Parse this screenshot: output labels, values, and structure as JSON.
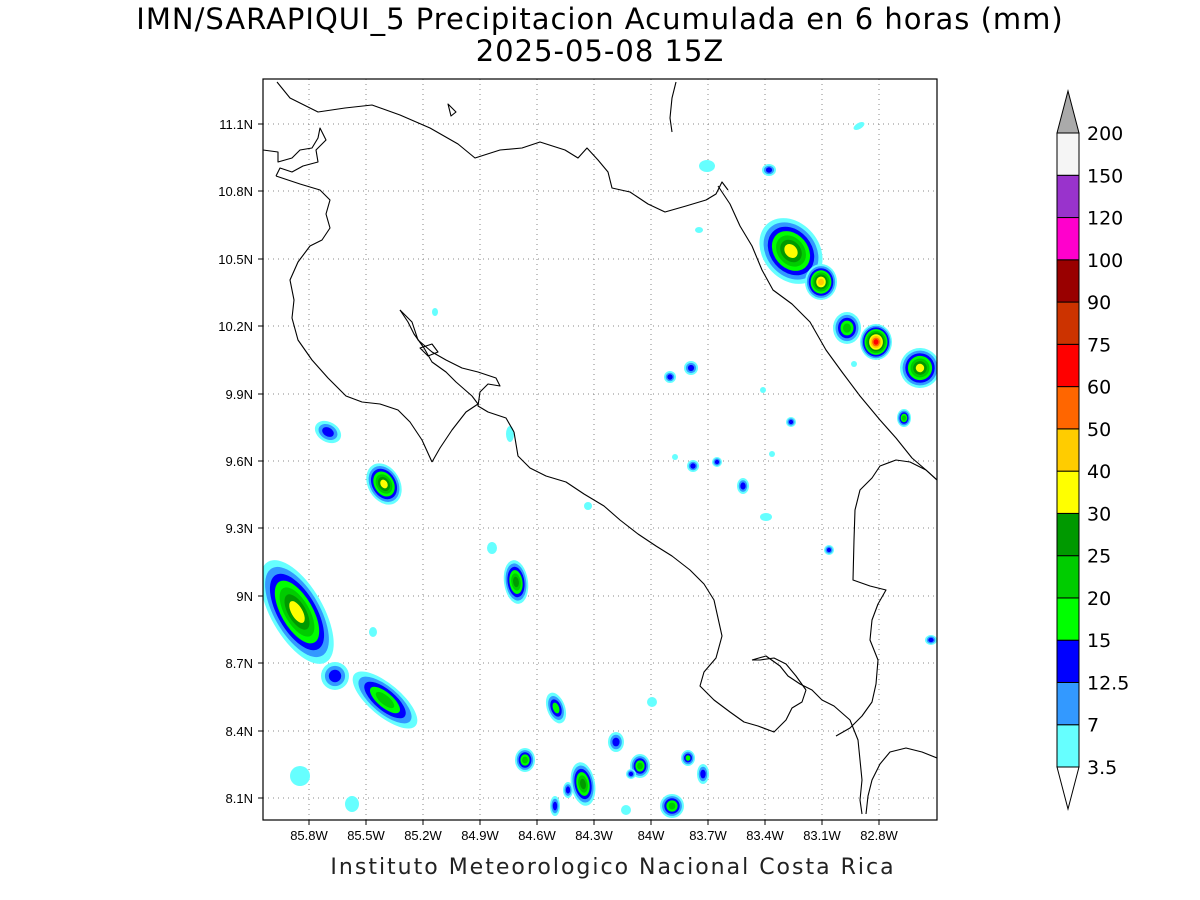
{
  "title": {
    "line1": "IMN/SARAPIQUI_5 Precipitacion Acumulada en 6 horas (mm)",
    "line2": "2025-05-08 15Z"
  },
  "credit": "Instituto Meteorologico Nacional Costa Rica",
  "map": {
    "lon_range": [
      -86.0,
      -83.0
    ],
    "lat_range": [
      8.0,
      11.2
    ],
    "grid": true,
    "x_ticks": [
      "85.8W",
      "85.5W",
      "85.2W",
      "84.9W",
      "84.6W",
      "84.3W",
      "84W",
      "83.7W",
      "83.4W",
      "83.1W",
      "82.8W"
    ],
    "y_ticks": [
      "11.1N",
      "10.8N",
      "10.5N",
      "10.2N",
      "9.9N",
      "9.6N",
      "9.3N",
      "9N",
      "8.7N",
      "8.4N",
      "8.1N"
    ]
  },
  "colorbar": {
    "labels": [
      "3.5",
      "7",
      "12.5",
      "15",
      "20",
      "25",
      "30",
      "40",
      "50",
      "60",
      "75",
      "90",
      "100",
      "120",
      "150",
      "200"
    ],
    "colors": [
      "#66ffff",
      "#3399ff",
      "#0000ff",
      "#00ff00",
      "#00cc00",
      "#009900",
      "#ffff00",
      "#ffcc00",
      "#ff6600",
      "#ff0000",
      "#cc3300",
      "#990000",
      "#ff00cc",
      "#9933cc",
      "#f5f5f5",
      "#aaaaaa"
    ]
  }
}
